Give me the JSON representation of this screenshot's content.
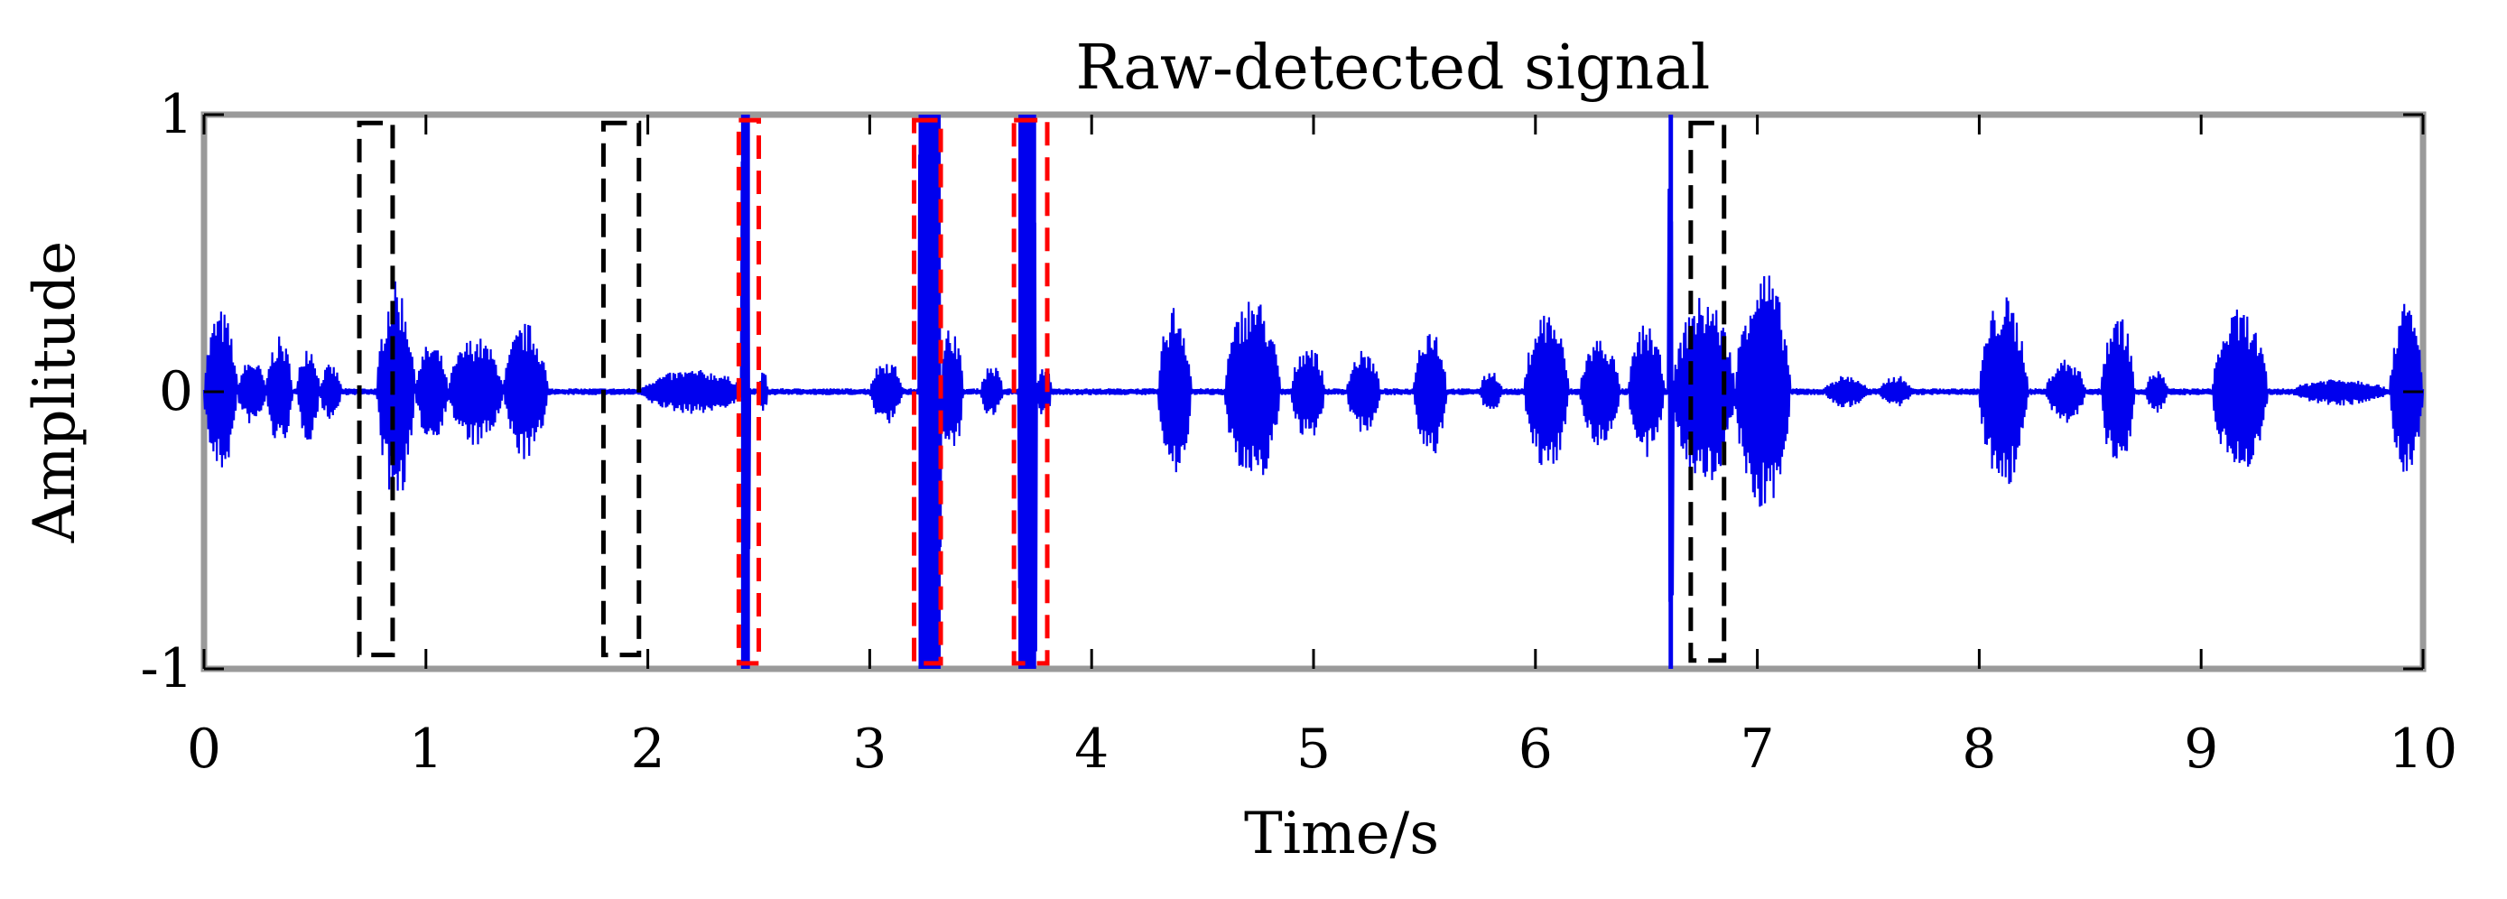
{
  "chart_data": {
    "type": "line",
    "title": "Raw-detected signal",
    "xlabel": "Time/s",
    "ylabel": "Amplitude",
    "xlim": [
      0,
      10
    ],
    "ylim": [
      -1,
      1
    ],
    "x_ticks": [
      "0",
      "1",
      "2",
      "3",
      "4",
      "5",
      "6",
      "7",
      "8",
      "9",
      "10"
    ],
    "y_ticks": [
      "-1",
      "0",
      "1"
    ],
    "grid": false,
    "series": [
      {
        "color": "#0000ee",
        "bursts": [
          {
            "start": 0.0,
            "end": 0.15,
            "amp": 0.3
          },
          {
            "start": 0.15,
            "end": 0.28,
            "amp": 0.12
          },
          {
            "start": 0.28,
            "end": 0.4,
            "amp": 0.2
          },
          {
            "start": 0.42,
            "end": 0.52,
            "amp": 0.18
          },
          {
            "start": 0.52,
            "end": 0.62,
            "amp": 0.1
          },
          {
            "start": 0.78,
            "end": 0.95,
            "amp": 0.4
          },
          {
            "start": 0.95,
            "end": 1.1,
            "amp": 0.18
          },
          {
            "start": 1.1,
            "end": 1.35,
            "amp": 0.2
          },
          {
            "start": 1.35,
            "end": 1.55,
            "amp": 0.25
          },
          {
            "start": 1.96,
            "end": 2.45,
            "amp": 0.08
          },
          {
            "start": 2.42,
            "end": 2.46,
            "amp": 1.0
          },
          {
            "start": 2.5,
            "end": 2.54,
            "amp": 0.08
          },
          {
            "start": 3.0,
            "end": 3.15,
            "amp": 0.12
          },
          {
            "start": 3.22,
            "end": 3.32,
            "amp": 1.0
          },
          {
            "start": 3.32,
            "end": 3.42,
            "amp": 0.25
          },
          {
            "start": 3.5,
            "end": 3.6,
            "amp": 0.1
          },
          {
            "start": 3.67,
            "end": 3.75,
            "amp": 1.0
          },
          {
            "start": 3.75,
            "end": 3.82,
            "amp": 0.1
          },
          {
            "start": 4.3,
            "end": 4.45,
            "amp": 0.32
          },
          {
            "start": 4.6,
            "end": 4.85,
            "amp": 0.35
          },
          {
            "start": 4.9,
            "end": 5.05,
            "amp": 0.18
          },
          {
            "start": 5.15,
            "end": 5.3,
            "amp": 0.15
          },
          {
            "start": 5.45,
            "end": 5.6,
            "amp": 0.25
          },
          {
            "start": 5.75,
            "end": 5.85,
            "amp": 0.08
          },
          {
            "start": 5.95,
            "end": 6.15,
            "amp": 0.3
          },
          {
            "start": 6.2,
            "end": 6.38,
            "amp": 0.2
          },
          {
            "start": 6.42,
            "end": 6.58,
            "amp": 0.25
          },
          {
            "start": 6.6,
            "end": 6.62,
            "amp": 1.0
          },
          {
            "start": 6.62,
            "end": 6.9,
            "amp": 0.35
          },
          {
            "start": 6.9,
            "end": 7.15,
            "amp": 0.45
          },
          {
            "start": 7.3,
            "end": 7.5,
            "amp": 0.06
          },
          {
            "start": 7.55,
            "end": 7.7,
            "amp": 0.06
          },
          {
            "start": 8.0,
            "end": 8.22,
            "amp": 0.35
          },
          {
            "start": 8.3,
            "end": 8.48,
            "amp": 0.12
          },
          {
            "start": 8.55,
            "end": 8.7,
            "amp": 0.3
          },
          {
            "start": 8.75,
            "end": 8.85,
            "amp": 0.08
          },
          {
            "start": 9.05,
            "end": 9.3,
            "amp": 0.3
          },
          {
            "start": 9.4,
            "end": 9.85,
            "amp": 0.05
          },
          {
            "start": 9.85,
            "end": 10.0,
            "amp": 0.33
          }
        ],
        "noise": 0.012
      }
    ],
    "boxes": [
      {
        "x0": 0.7,
        "x1": 0.85,
        "y0": -0.95,
        "y1": 0.97,
        "color": "#000000"
      },
      {
        "x0": 1.8,
        "x1": 1.96,
        "y0": -0.95,
        "y1": 0.97,
        "color": "#000000"
      },
      {
        "x0": 2.41,
        "x1": 2.5,
        "y0": -0.98,
        "y1": 0.98,
        "color": "#ff0000"
      },
      {
        "x0": 3.2,
        "x1": 3.32,
        "y0": -0.98,
        "y1": 0.98,
        "color": "#ff0000"
      },
      {
        "x0": 3.65,
        "x1": 3.8,
        "y0": -0.98,
        "y1": 0.98,
        "color": "#ff0000"
      },
      {
        "x0": 6.7,
        "x1": 6.85,
        "y0": -0.97,
        "y1": 0.97,
        "color": "#000000"
      }
    ]
  }
}
